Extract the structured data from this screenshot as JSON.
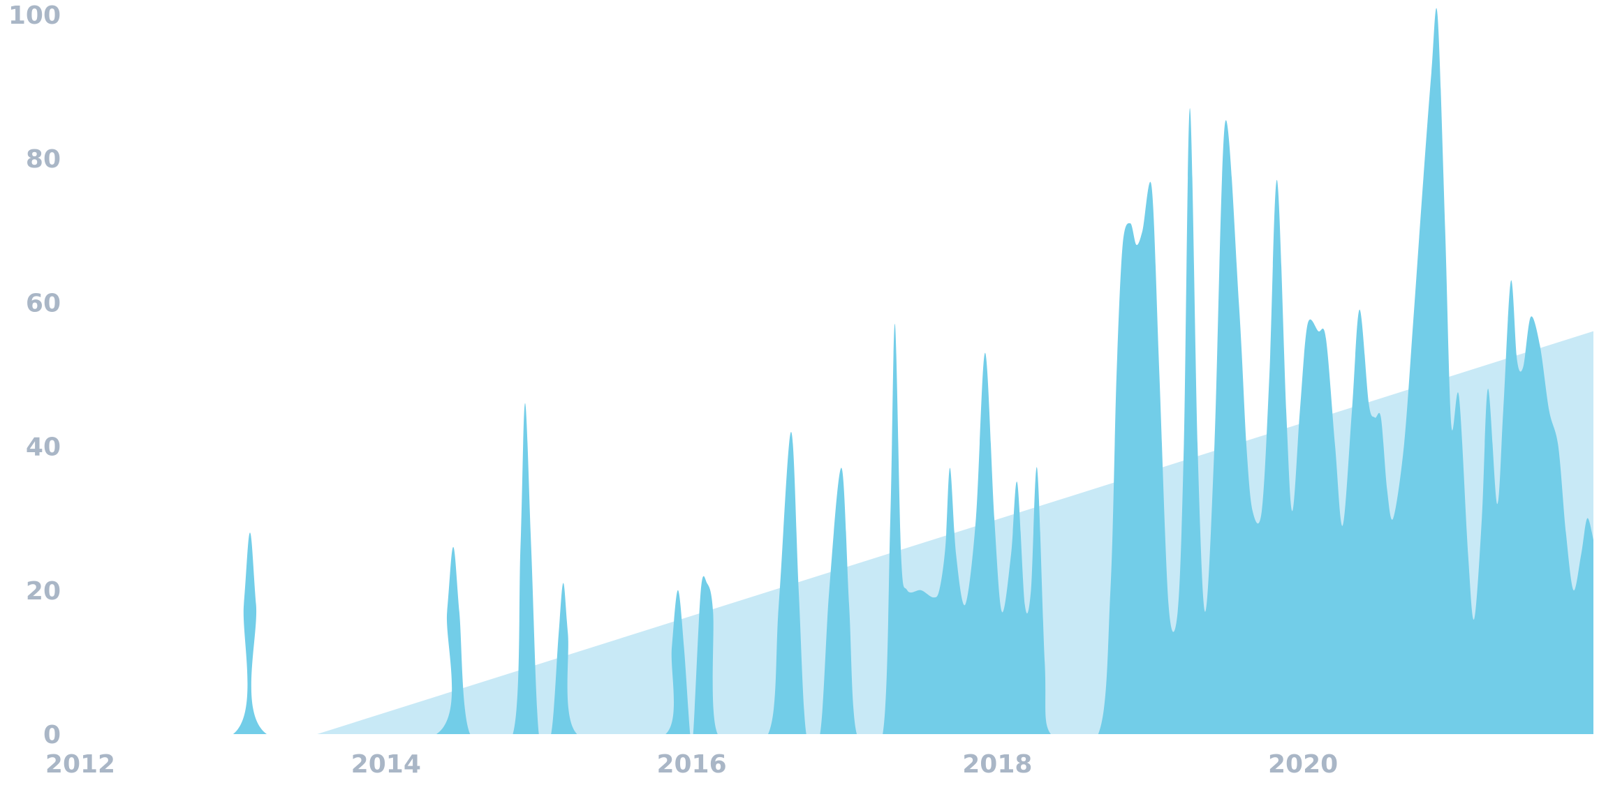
{
  "chart_data": {
    "type": "area",
    "title": "",
    "xlabel": "",
    "ylabel": "",
    "xlim": [
      2012,
      2021.9
    ],
    "ylim": [
      0,
      100
    ],
    "x_ticks": [
      {
        "value": 2012,
        "label": "2012"
      },
      {
        "value": 2014,
        "label": "2014"
      },
      {
        "value": 2016,
        "label": "2016"
      },
      {
        "value": 2018,
        "label": "2018"
      },
      {
        "value": 2020,
        "label": "2020"
      }
    ],
    "y_ticks": [
      {
        "value": 0,
        "label": "0"
      },
      {
        "value": 20,
        "label": "20"
      },
      {
        "value": 40,
        "label": "40"
      },
      {
        "value": 60,
        "label": "60"
      },
      {
        "value": 80,
        "label": "80"
      },
      {
        "value": 100,
        "label": "100"
      }
    ],
    "grid": false,
    "legend": "none",
    "colors": {
      "trend": "#c8e9f6",
      "activity": "#72cde8"
    },
    "series": [
      {
        "values": [
          [
            2012,
            0
          ],
          [
            2013.55,
            0
          ],
          [
            2021.9,
            56
          ]
        ]
      },
      {
        "values": [
          [
            2012,
            0
          ],
          [
            2013.0,
            0
          ],
          [
            2013.07,
            18
          ],
          [
            2013.11,
            28
          ],
          [
            2013.15,
            18
          ],
          [
            2013.22,
            0
          ],
          [
            2014.33,
            0
          ],
          [
            2014.4,
            17
          ],
          [
            2014.44,
            26
          ],
          [
            2014.48,
            17
          ],
          [
            2014.55,
            0
          ],
          [
            2014.83,
            0
          ],
          [
            2014.88,
            26
          ],
          [
            2014.91,
            46
          ],
          [
            2014.95,
            26
          ],
          [
            2015.0,
            0
          ],
          [
            2015.08,
            0
          ],
          [
            2015.13,
            14
          ],
          [
            2015.16,
            21
          ],
          [
            2015.19,
            14
          ],
          [
            2015.25,
            0
          ],
          [
            2015.83,
            0
          ],
          [
            2015.87,
            12
          ],
          [
            2015.91,
            20
          ],
          [
            2015.95,
            12
          ],
          [
            2015.99,
            0
          ],
          [
            2016.01,
            0
          ],
          [
            2016.06,
            20
          ],
          [
            2016.1,
            21
          ],
          [
            2016.14,
            17
          ],
          [
            2016.17,
            0
          ],
          [
            2016.5,
            0
          ],
          [
            2016.57,
            18
          ],
          [
            2016.65,
            42
          ],
          [
            2016.7,
            20
          ],
          [
            2016.75,
            0
          ],
          [
            2016.84,
            0
          ],
          [
            2016.9,
            20
          ],
          [
            2016.98,
            37
          ],
          [
            2017.03,
            18
          ],
          [
            2017.08,
            0
          ],
          [
            2017.25,
            0
          ],
          [
            2017.3,
            30
          ],
          [
            2017.33,
            57
          ],
          [
            2017.37,
            25
          ],
          [
            2017.41,
            20
          ],
          [
            2017.5,
            20
          ],
          [
            2017.58,
            19
          ],
          [
            2017.62,
            20
          ],
          [
            2017.66,
            26
          ],
          [
            2017.69,
            37
          ],
          [
            2017.73,
            25
          ],
          [
            2017.79,
            18
          ],
          [
            2017.86,
            30
          ],
          [
            2017.92,
            53
          ],
          [
            2017.98,
            30
          ],
          [
            2018.03,
            17
          ],
          [
            2018.09,
            25
          ],
          [
            2018.13,
            35
          ],
          [
            2018.18,
            18
          ],
          [
            2018.22,
            20
          ],
          [
            2018.26,
            37
          ],
          [
            2018.31,
            10
          ],
          [
            2018.35,
            0
          ],
          [
            2018.66,
            0
          ],
          [
            2018.74,
            20
          ],
          [
            2018.78,
            50
          ],
          [
            2018.82,
            68
          ],
          [
            2018.87,
            71
          ],
          [
            2018.91,
            68
          ],
          [
            2018.95,
            70
          ],
          [
            2019.01,
            76
          ],
          [
            2019.06,
            50
          ],
          [
            2019.12,
            18
          ],
          [
            2019.18,
            17
          ],
          [
            2019.22,
            40
          ],
          [
            2019.26,
            87
          ],
          [
            2019.31,
            40
          ],
          [
            2019.36,
            17
          ],
          [
            2019.42,
            40
          ],
          [
            2019.49,
            85
          ],
          [
            2019.58,
            60
          ],
          [
            2019.63,
            40
          ],
          [
            2019.67,
            31
          ],
          [
            2019.73,
            31
          ],
          [
            2019.78,
            50
          ],
          [
            2019.83,
            77
          ],
          [
            2019.89,
            45
          ],
          [
            2019.93,
            31
          ],
          [
            2019.98,
            45
          ],
          [
            2020.03,
            57
          ],
          [
            2020.1,
            56
          ],
          [
            2020.15,
            55
          ],
          [
            2020.21,
            40
          ],
          [
            2020.26,
            29
          ],
          [
            2020.32,
            45
          ],
          [
            2020.37,
            59
          ],
          [
            2020.43,
            46
          ],
          [
            2020.47,
            44
          ],
          [
            2020.51,
            44
          ],
          [
            2020.55,
            34
          ],
          [
            2020.59,
            30
          ],
          [
            2020.66,
            40
          ],
          [
            2020.72,
            57
          ],
          [
            2020.78,
            75
          ],
          [
            2020.84,
            92
          ],
          [
            2020.88,
            100
          ],
          [
            2020.93,
            70
          ],
          [
            2020.97,
            43
          ],
          [
            2021.02,
            47
          ],
          [
            2021.08,
            25
          ],
          [
            2021.12,
            16
          ],
          [
            2021.17,
            30
          ],
          [
            2021.21,
            48
          ],
          [
            2021.27,
            32
          ],
          [
            2021.31,
            45
          ],
          [
            2021.36,
            63
          ],
          [
            2021.4,
            52
          ],
          [
            2021.44,
            51
          ],
          [
            2021.49,
            58
          ],
          [
            2021.55,
            54
          ],
          [
            2021.61,
            45
          ],
          [
            2021.67,
            40
          ],
          [
            2021.72,
            28
          ],
          [
            2021.77,
            20
          ],
          [
            2021.82,
            25
          ],
          [
            2021.86,
            30
          ],
          [
            2021.9,
            27
          ]
        ]
      }
    ]
  }
}
